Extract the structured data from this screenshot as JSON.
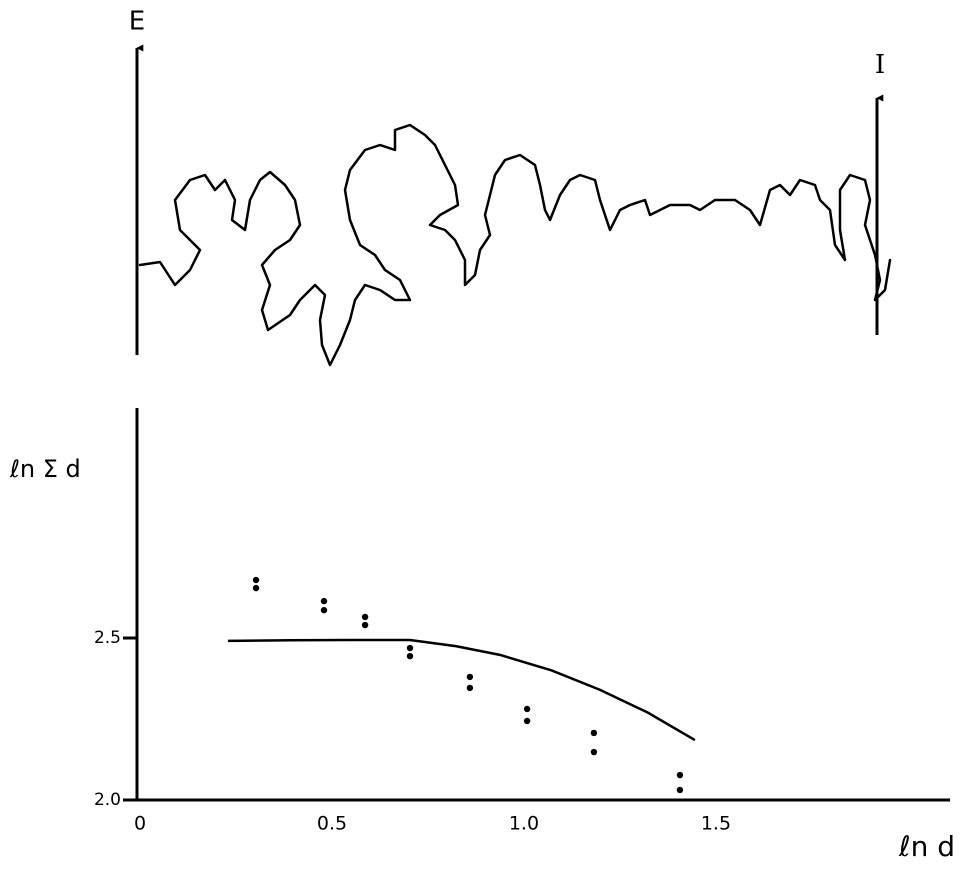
{
  "diagram": {
    "left_label": "E",
    "right_label": "I"
  },
  "chart_data": {
    "type": "scatter",
    "color": "#000000",
    "x_label": "ℓn d",
    "y_label": "ℓn Σ d",
    "xlim": [
      0,
      2.12
    ],
    "ylim": [
      2.0,
      3.21
    ],
    "xticks": [
      0,
      0.5,
      {
        "value": 1,
        "label": "1.0"
      },
      1.5
    ],
    "yticks": [
      {
        "value": 2,
        "label": "2.0"
      },
      2.5
    ],
    "points": {
      "x": [
        0.31,
        0.31,
        0.487,
        0.487,
        0.594,
        0.594,
        0.711,
        0.711,
        0.867,
        0.867,
        1.016,
        1.016,
        1.19,
        1.19,
        1.414,
        1.414
      ],
      "y": [
        2.679,
        2.654,
        2.614,
        2.586,
        2.565,
        2.54,
        2.469,
        2.444,
        2.38,
        2.346,
        2.281,
        2.244,
        2.207,
        2.148,
        2.077,
        2.031
      ]
    },
    "curve": {
      "x": [
        0.237,
        0.4,
        0.55,
        0.711,
        0.83,
        0.945,
        1.08,
        1.206,
        1.33,
        1.453
      ],
      "y": [
        2.491,
        2.493,
        2.494,
        2.494,
        2.475,
        2.448,
        2.4,
        2.34,
        2.27,
        2.185
      ]
    }
  }
}
